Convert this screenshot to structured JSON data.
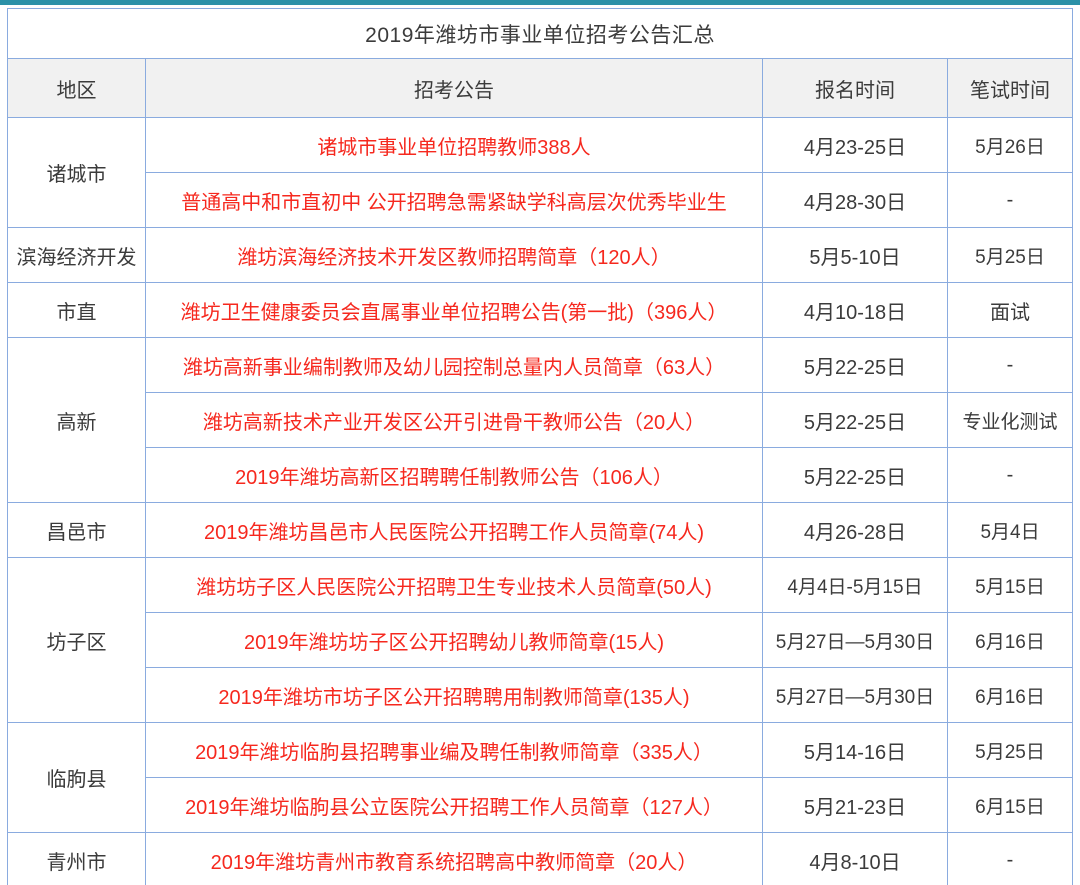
{
  "page": {
    "accent_color": "#2b91a8",
    "border_color": "#8aabdf",
    "link_color": "#f6281e",
    "header_bg": "#f1f1f1"
  },
  "table": {
    "title": "2019年潍坊市事业单位招考公告汇总",
    "columns": [
      "地区",
      "招考公告",
      "报名时间",
      "笔试时间"
    ],
    "groups": [
      {
        "region": "诸城市",
        "rows": [
          {
            "announcement": "诸城市事业单位招聘教师388人",
            "signup": "4月23-25日",
            "exam": "5月26日"
          },
          {
            "announcement": "普通高中和市直初中 公开招聘急需紧缺学科高层次优秀毕业生",
            "signup": "4月28-30日",
            "exam": "-"
          }
        ]
      },
      {
        "region": "滨海经济开发",
        "rows": [
          {
            "announcement": "潍坊滨海经济技术开发区教师招聘简章（120人）",
            "signup": "5月5-10日",
            "exam": "5月25日"
          }
        ]
      },
      {
        "region": "市直",
        "rows": [
          {
            "announcement": "潍坊卫生健康委员会直属事业单位招聘公告(第一批)（396人）",
            "signup": "4月10-18日",
            "exam": "面试"
          }
        ]
      },
      {
        "region": "高新",
        "rows": [
          {
            "announcement": "潍坊高新事业编制教师及幼儿园控制总量内人员简章（63人）",
            "signup": "5月22-25日",
            "exam": "-"
          },
          {
            "announcement": "潍坊高新技术产业开发区公开引进骨干教师公告（20人）",
            "signup": "5月22-25日",
            "exam": "专业化测试"
          },
          {
            "announcement": "2019年潍坊高新区招聘聘任制教师公告（106人）",
            "signup": "5月22-25日",
            "exam": "-"
          }
        ]
      },
      {
        "region": "昌邑市",
        "rows": [
          {
            "announcement": "2019年潍坊昌邑市人民医院公开招聘工作人员简章(74人)",
            "signup": "4月26-28日",
            "exam": "5月4日"
          }
        ]
      },
      {
        "region": "坊子区",
        "rows": [
          {
            "announcement": "潍坊坊子区人民医院公开招聘卫生专业技术人员简章(50人)",
            "signup": "4月4日-5月15日",
            "exam": "5月15日"
          },
          {
            "announcement": "2019年潍坊坊子区公开招聘幼儿教师简章(15人)",
            "signup": "5月27日—5月30日",
            "exam": "6月16日"
          },
          {
            "announcement": "2019年潍坊市坊子区公开招聘聘用制教师简章(135人)",
            "signup": "5月27日—5月30日",
            "exam": "6月16日"
          }
        ]
      },
      {
        "region": "临朐县",
        "rows": [
          {
            "announcement": "2019年潍坊临朐县招聘事业编及聘任制教师简章（335人）",
            "signup": "5月14-16日",
            "exam": "5月25日"
          },
          {
            "announcement": "2019年潍坊临朐县公立医院公开招聘工作人员简章（127人）",
            "signup": "5月21-23日",
            "exam": "6月15日"
          }
        ]
      },
      {
        "region": "青州市",
        "rows": [
          {
            "announcement": "2019年潍坊青州市教育系统招聘高中教师简章（20人）",
            "signup": "4月8-10日",
            "exam": "-"
          }
        ]
      }
    ]
  }
}
